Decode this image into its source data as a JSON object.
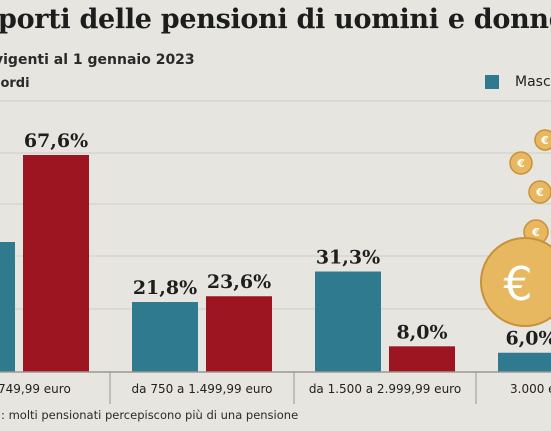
{
  "header": {
    "title": "porti delle pensioni di uomini e donne",
    "subtitle": "vigenti al 1 gennaio 2023",
    "unit": "lordi"
  },
  "legend": {
    "items": [
      {
        "label": "Maschi",
        "color": "#2f7a8e"
      }
    ]
  },
  "footer": {
    "source": "a: molti pensionati percepiscono più di una pensione"
  },
  "chart_data": {
    "type": "bar",
    "categories": [
      "749,99 euro",
      "da 750 a 1.499,99 euro",
      "da 1.500 a 2.999,99 euro",
      "3.000 e"
    ],
    "series": [
      {
        "name": "Maschi",
        "color": "#2f7a8e",
        "values": [
          null,
          21.8,
          31.3,
          6.0
        ],
        "labels": [
          "%",
          "21,8%",
          "31,3%",
          "6,0%"
        ]
      },
      {
        "name": "",
        "color": "#9c1521",
        "values": [
          67.6,
          23.6,
          8.0,
          null
        ],
        "labels": [
          "67,6%",
          "23,6%",
          "8,0%",
          ""
        ]
      }
    ],
    "ylim": [
      0,
      75
    ],
    "grid": true,
    "legend_position": "top-right",
    "decoration": "euro-coins-icon"
  }
}
